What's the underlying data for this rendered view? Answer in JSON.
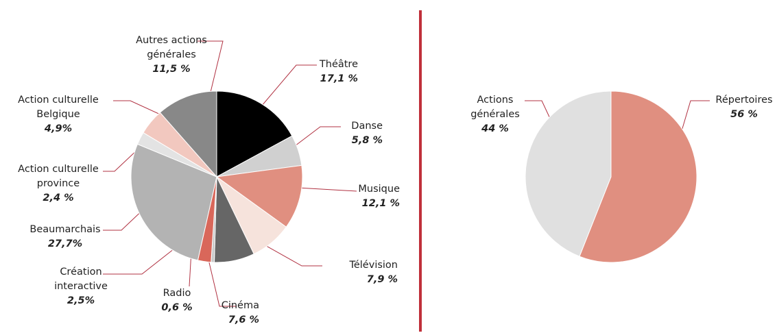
{
  "chart_data": [
    {
      "type": "pie",
      "categories": [
        "Théâtre",
        "Danse",
        "Musique",
        "Télévision",
        "Cinéma",
        "Radio",
        "Création interactive",
        "Beaumarchais",
        "Action culturelle province",
        "Action culturelle Belgique",
        "Autres actions générales"
      ],
      "values": [
        17.1,
        5.8,
        12.1,
        7.9,
        7.6,
        0.6,
        2.5,
        27.7,
        2.4,
        4.9,
        11.5
      ],
      "value_labels": [
        "17,1 %",
        "5,8 %",
        "12,1 %",
        "7,9 %",
        "7,6 %",
        "0,6 %",
        "2,5%",
        "27,7%",
        "2,4 %",
        "4,9%",
        "11,5 %"
      ],
      "colors": [
        "#000000",
        "#d0d0d0",
        "#e08f80",
        "#f6e3dc",
        "#666666",
        "#c8c8c8",
        "#d9675a",
        "#b3b3b3",
        "#e3e3e3",
        "#f2c8bf",
        "#888888"
      ]
    },
    {
      "type": "pie",
      "categories": [
        "Répertoires",
        "Actions générales"
      ],
      "values": [
        56,
        44
      ],
      "value_labels": [
        "56 %",
        "44 %"
      ],
      "colors": [
        "#e08f80",
        "#e0e0e0"
      ]
    }
  ]
}
